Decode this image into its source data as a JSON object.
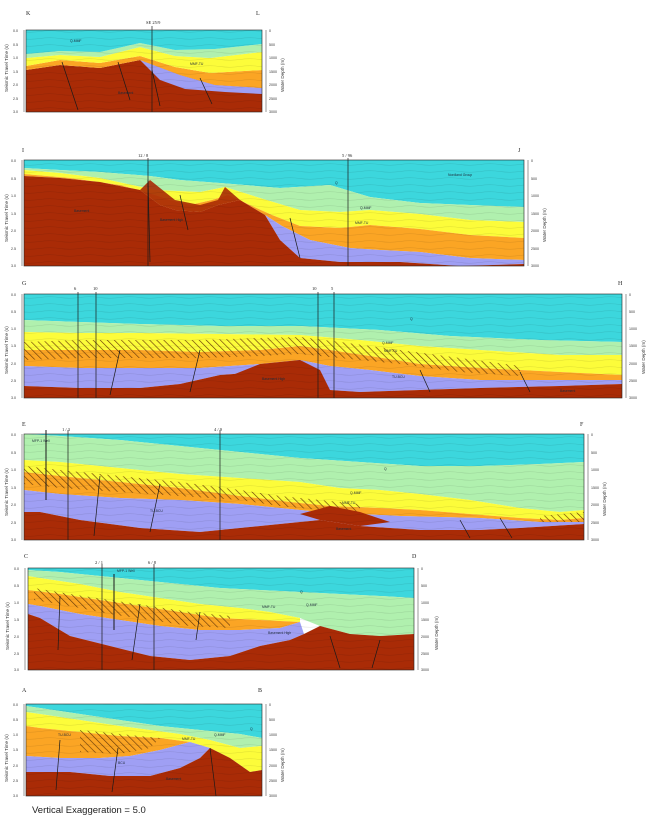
{
  "caption": "Vertical Exaggeration = 5.0",
  "colors": {
    "water": "#3cd7dd",
    "green": "#b0f0ae",
    "yellow": "#fcfc3a",
    "orange": "#fba524",
    "purple": "#9f9ff4",
    "basement": "#a92b06"
  },
  "y_axis_title": "Seismic Travel Time (s)",
  "depth_axis_title": "Water Depth (m)",
  "sections": [
    {
      "id": "KL",
      "left_label": "K",
      "right_label": "L",
      "ticks_left": [
        "0.0",
        "0.5",
        "1.0",
        "1.5",
        "2.0",
        "2.5",
        "3.0"
      ],
      "ticks_right": [
        "0",
        "500",
        "1000",
        "1500",
        "2000",
        "2500",
        "3000"
      ],
      "wells": [
        {
          "label": "SE 25/9"
        }
      ],
      "units": [
        {
          "label": "Q-MMF"
        },
        {
          "label": "MMF-TU"
        },
        {
          "label": "Basement"
        }
      ]
    },
    {
      "id": "IJ",
      "left_label": "I",
      "right_label": "J",
      "ticks_left": [
        "0.0",
        "0.5",
        "1.0",
        "1.5",
        "2.0",
        "2.5",
        "3.0"
      ],
      "ticks_right": [
        "0",
        "500",
        "1000",
        "1500",
        "2000",
        "2500",
        "3000"
      ],
      "wells": [
        {
          "label": "12 / 8"
        },
        {
          "label": "5 / 96"
        }
      ],
      "units": [
        {
          "label": "Nordland Group"
        },
        {
          "label": "Q"
        },
        {
          "label": "Q-MMF"
        },
        {
          "label": "MMF-TU"
        },
        {
          "label": "Basement"
        },
        {
          "label": "Basement High"
        }
      ]
    },
    {
      "id": "GH",
      "left_label": "G",
      "right_label": "H",
      "ticks_left": [
        "0.0",
        "0.5",
        "1.0",
        "1.5",
        "2.0",
        "2.5",
        "3.0"
      ],
      "ticks_right": [
        "0",
        "500",
        "1000",
        "1500",
        "2000",
        "2500",
        "3000"
      ],
      "wells": [
        {
          "label": "6"
        },
        {
          "label": "10"
        },
        {
          "label": "10"
        },
        {
          "label": "5"
        }
      ],
      "units": [
        {
          "label": "Q"
        },
        {
          "label": "MMF-TU"
        },
        {
          "label": "Q-MMF"
        },
        {
          "label": "TU-BCU"
        },
        {
          "label": "Basement High"
        },
        {
          "label": "Basement"
        }
      ]
    },
    {
      "id": "EF",
      "left_label": "E",
      "right_label": "F",
      "ticks_left": [
        "0.0",
        "0.5",
        "1.0",
        "1.5",
        "2.0",
        "2.5",
        "3.0"
      ],
      "ticks_right": [
        "0",
        "500",
        "1000",
        "1500",
        "2000",
        "2500",
        "3000"
      ],
      "wells": [
        {
          "label": "1 / 3"
        },
        {
          "label": "4 / 9"
        }
      ],
      "units": [
        {
          "label": "MFP-1 Well"
        },
        {
          "label": "Q"
        },
        {
          "label": "Q-MMF"
        },
        {
          "label": "MMF-TU"
        },
        {
          "label": "TU-BCU"
        },
        {
          "label": "Basement"
        }
      ]
    },
    {
      "id": "CD",
      "left_label": "C",
      "right_label": "D",
      "ticks_left": [
        "0.0",
        "0.5",
        "1.0",
        "1.5",
        "2.0",
        "2.5",
        "3.0"
      ],
      "ticks_right": [
        "0",
        "500",
        "1000",
        "1500",
        "2000",
        "2500",
        "3000"
      ],
      "wells": [
        {
          "label": "2 / 1"
        },
        {
          "label": "6 / 8"
        }
      ],
      "units": [
        {
          "label": "MFP-1 Well"
        },
        {
          "label": "Q"
        },
        {
          "label": "Q-MMF"
        },
        {
          "label": "MMF-TU"
        },
        {
          "label": "Basement High"
        }
      ]
    },
    {
      "id": "AB",
      "left_label": "A",
      "right_label": "B",
      "ticks_left": [
        "0.0",
        "0.5",
        "1.0",
        "1.5",
        "2.0",
        "2.5",
        "3.0"
      ],
      "ticks_right": [
        "0",
        "500",
        "1000",
        "1500",
        "2000",
        "2500",
        "3000"
      ],
      "wells": [],
      "units": [
        {
          "label": "Q"
        },
        {
          "label": "Q-MMF"
        },
        {
          "label": "MMF-TU"
        },
        {
          "label": "TU-BCU"
        },
        {
          "label": "BCU"
        },
        {
          "label": "Basement"
        }
      ]
    }
  ]
}
